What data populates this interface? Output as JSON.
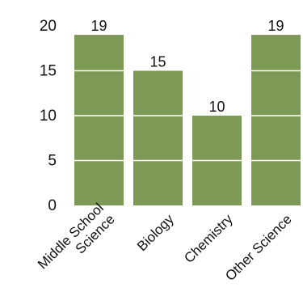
{
  "chart_data": {
    "type": "bar",
    "categories": [
      "Middle School Science",
      "Biology",
      "Chemistry",
      "Other Science"
    ],
    "category_label_lines": [
      [
        "Middle School",
        "Science"
      ],
      [
        "Biology"
      ],
      [
        "Chemistry"
      ],
      [
        "Other Science"
      ]
    ],
    "values": [
      19,
      15,
      10,
      19
    ],
    "data_labels": [
      "19",
      "15",
      "10",
      "19"
    ],
    "title": "",
    "xlabel": "",
    "ylabel": "",
    "ylim": [
      0,
      20
    ],
    "yticks": [
      0,
      5,
      10,
      15,
      20
    ],
    "grid": false,
    "legend": "none"
  },
  "colors": {
    "bar": "#7c9a56",
    "segment_line": "#ffffff"
  }
}
